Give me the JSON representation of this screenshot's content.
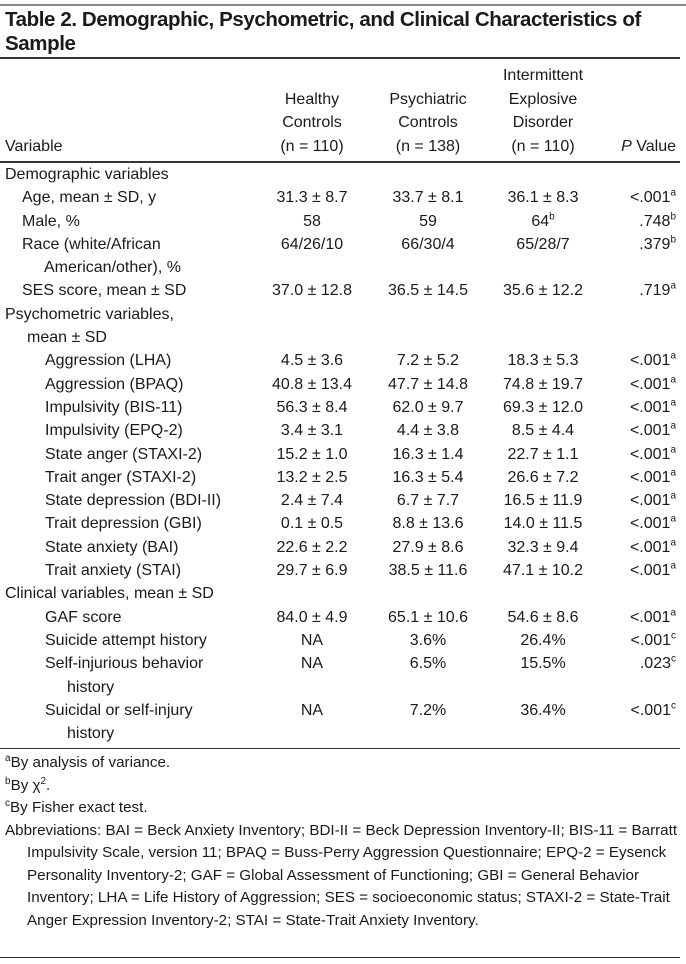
{
  "title": "Table 2. Demographic, Psychometric, and Clinical Characteristics of Sample",
  "headers": {
    "variable": "Variable",
    "hc": "Healthy\nControls\n(n = 110)",
    "pc": "Psychiatric\nControls\n(n = 138)",
    "ied": "Intermittent\nExplosive\nDisorder\n(n = 110)",
    "p_italic": "P",
    "p_rest": " Value"
  },
  "rows": [
    {
      "label": "Demographic variables",
      "indent": 0
    },
    {
      "label": "Age, mean ± SD, y",
      "indent": 1,
      "hc": "31.3 ± 8.7",
      "pc": "33.7 ± 8.1",
      "ied": "36.1 ± 8.3",
      "p": "<.001",
      "p_sup": "a"
    },
    {
      "label": "Male, %",
      "indent": 1,
      "hc": "58",
      "pc": "59",
      "ied": "64",
      "ied_sup": "b",
      "p": ".748",
      "p_sup": "b"
    },
    {
      "label": "Race (white/African\nAmerican/other), %",
      "indent": 1,
      "hc": "64/26/10",
      "pc": "66/30/4",
      "ied": "65/28/7",
      "p": ".379",
      "p_sup": "b"
    },
    {
      "label": "SES score, mean ± SD",
      "indent": 1,
      "hc": "37.0 ± 12.8",
      "pc": "36.5 ± 14.5",
      "ied": "35.6 ± 12.2",
      "p": ".719",
      "p_sup": "a"
    },
    {
      "label": "Psychometric variables,\nmean ± SD",
      "indent": 0
    },
    {
      "label": "Aggression (LHA)",
      "indent": 2,
      "hc": "4.5 ± 3.6",
      "pc": "7.2 ± 5.2",
      "ied": "18.3 ± 5.3",
      "p": "<.001",
      "p_sup": "a"
    },
    {
      "label": "Aggression (BPAQ)",
      "indent": 2,
      "hc": "40.8 ± 13.4",
      "pc": "47.7 ± 14.8",
      "ied": "74.8 ± 19.7",
      "p": "<.001",
      "p_sup": "a"
    },
    {
      "label": "Impulsivity (BIS-11)",
      "indent": 2,
      "hc": "56.3 ± 8.4",
      "pc": "62.0 ± 9.7",
      "ied": "69.3 ± 12.0",
      "p": "<.001",
      "p_sup": "a"
    },
    {
      "label": "Impulsivity (EPQ-2)",
      "indent": 2,
      "hc": "3.4 ± 3.1",
      "pc": "4.4 ± 3.8",
      "ied": "8.5 ± 4.4",
      "p": "<.001",
      "p_sup": "a"
    },
    {
      "label": "State anger (STAXI-2)",
      "indent": 2,
      "hc": "15.2 ± 1.0",
      "pc": "16.3 ± 1.4",
      "ied": "22.7 ± 1.1",
      "p": "<.001",
      "p_sup": "a"
    },
    {
      "label": "Trait anger (STAXI-2)",
      "indent": 2,
      "hc": "13.2 ± 2.5",
      "pc": "16.3 ± 5.4",
      "ied": "26.6 ± 7.2",
      "p": "<.001",
      "p_sup": "a"
    },
    {
      "label": "State depression (BDI-II)",
      "indent": 2,
      "hc": "2.4 ± 7.4",
      "pc": "6.7 ± 7.7",
      "ied": "16.5 ± 11.9",
      "p": "<.001",
      "p_sup": "a"
    },
    {
      "label": "Trait depression (GBI)",
      "indent": 2,
      "hc": "0.1 ± 0.5",
      "pc": "8.8 ± 13.6",
      "ied": "14.0 ± 11.5",
      "p": "<.001",
      "p_sup": "a"
    },
    {
      "label": "State anxiety (BAI)",
      "indent": 2,
      "hc": "22.6 ± 2.2",
      "pc": "27.9 ± 8.6",
      "ied": "32.3 ± 9.4",
      "p": "<.001",
      "p_sup": "a"
    },
    {
      "label": "Trait anxiety (STAI)",
      "indent": 2,
      "hc": "29.7 ± 6.9",
      "pc": "38.5 ± 11.6",
      "ied": "47.1 ± 10.2",
      "p": "<.001",
      "p_sup": "a"
    },
    {
      "label": "Clinical variables, mean ± SD",
      "indent": 0
    },
    {
      "label": "GAF score",
      "indent": 2,
      "hc": "84.0 ± 4.9",
      "pc": "65.1 ± 10.6",
      "ied": "54.6 ± 8.6",
      "p": "<.001",
      "p_sup": "a"
    },
    {
      "label": "Suicide attempt history",
      "indent": 2,
      "hc": "NA",
      "pc": "3.6%",
      "ied": "26.4%",
      "p": "<.001",
      "p_sup": "c"
    },
    {
      "label": "Self-injurious behavior\nhistory",
      "indent": 2,
      "hc": "NA",
      "pc": "6.5%",
      "ied": "15.5%",
      "p": ".023",
      "p_sup": "c"
    },
    {
      "label": "Suicidal or self-injury\nhistory",
      "indent": 2,
      "hc": "NA",
      "pc": "7.2%",
      "ied": "36.4%",
      "p": "<.001",
      "p_sup": "c"
    }
  ],
  "footnotes": [
    {
      "sup": "a",
      "text": "By analysis of variance."
    },
    {
      "sup": "b",
      "text": "By χ",
      "tail_sup": "2",
      "tail": "."
    },
    {
      "sup": "c",
      "text": "By Fisher exact test."
    },
    {
      "text": "Abbreviations: BAI = Beck Anxiety Inventory; BDI-II = Beck Depression Inventory-II; BIS-11 = Barratt Impulsivity Scale, version 11; BPAQ = Buss-Perry Aggression Questionnaire; EPQ-2 = Eysenck Personality Inventory-2; GAF = Global Assessment of Functioning; GBI = General Behavior Inventory; LHA = Life History of Aggression; SES = socioeconomic status; STAXI-2 = State-Trait Anger Expression Inventory-2; STAI = State-Trait Anxiety Inventory."
    }
  ]
}
